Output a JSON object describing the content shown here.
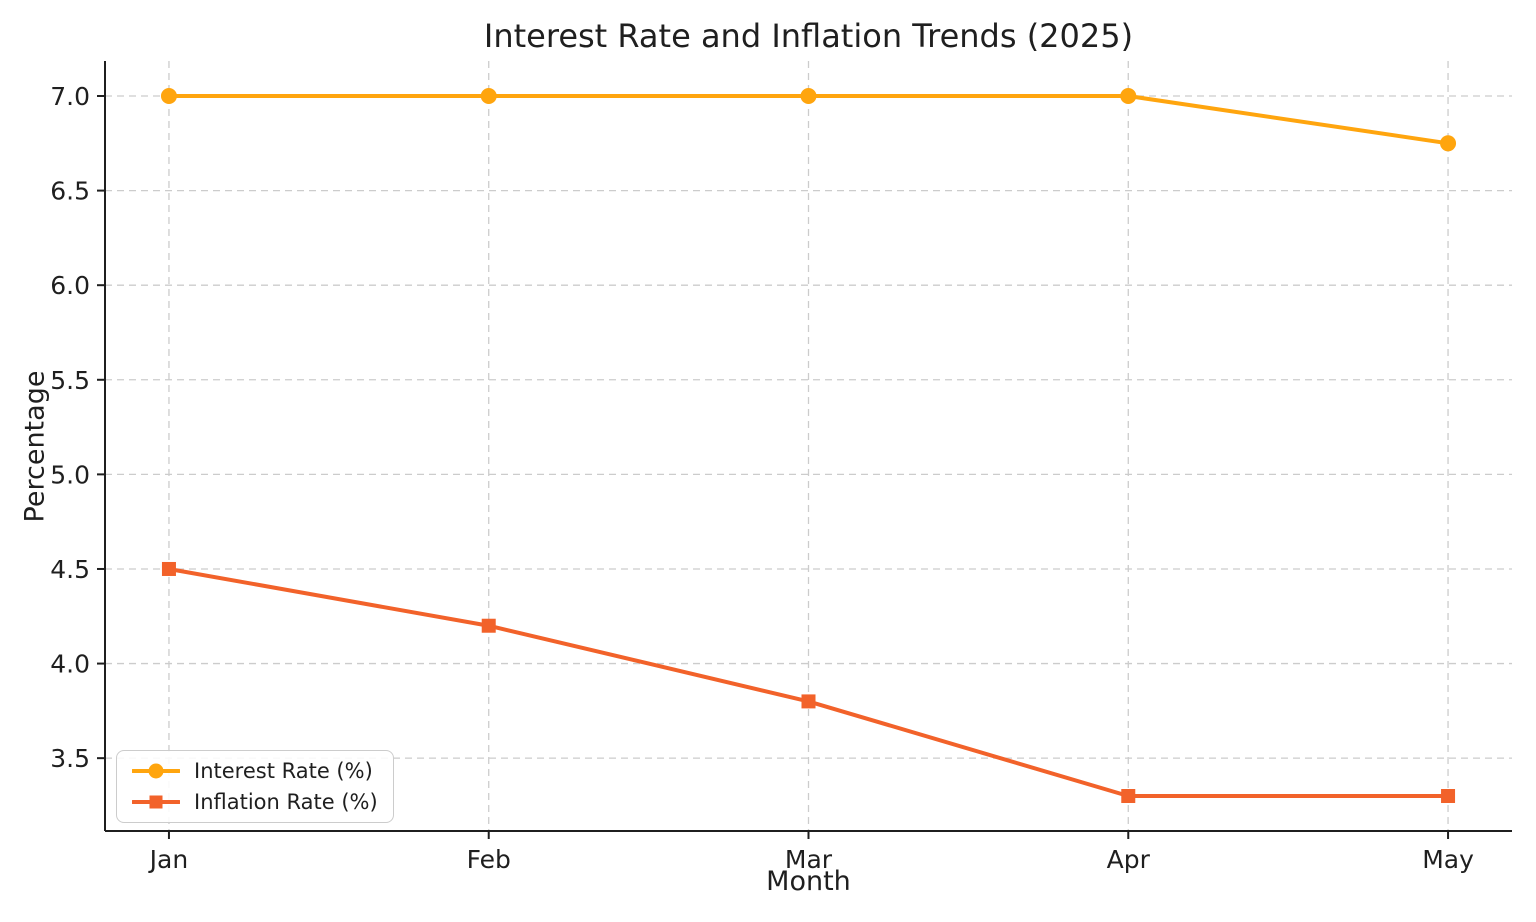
{
  "figure": {
    "background": "#ffffff",
    "colors": {
      "grid": "#cccccc",
      "axis": "#1f1f1f",
      "text": "#1f1f1f"
    }
  },
  "chart_data": {
    "type": "line",
    "title": "Interest Rate and Inflation Trends (2025)",
    "xlabel": "Month",
    "ylabel": "Percentage",
    "categories": [
      "Jan",
      "Feb",
      "Mar",
      "Apr",
      "May"
    ],
    "series": [
      {
        "name": "Interest Rate (%)",
        "color": "#FFA50E",
        "marker": "circle",
        "values": [
          7.0,
          7.0,
          7.0,
          7.0,
          6.75
        ]
      },
      {
        "name": "Inflation Rate (%)",
        "color": "#F2622A",
        "marker": "square",
        "values": [
          4.5,
          4.2,
          3.8,
          3.3,
          3.3
        ]
      }
    ],
    "yticks": [
      3.5,
      4.0,
      4.5,
      5.0,
      5.5,
      6.0,
      6.5,
      7.0
    ],
    "ytick_format_decimals": 1,
    "ylim": [
      3.115,
      7.185
    ],
    "x_margin": 0.2,
    "grid": true,
    "grid_style": "dashed",
    "legend_position": "lower-left"
  }
}
